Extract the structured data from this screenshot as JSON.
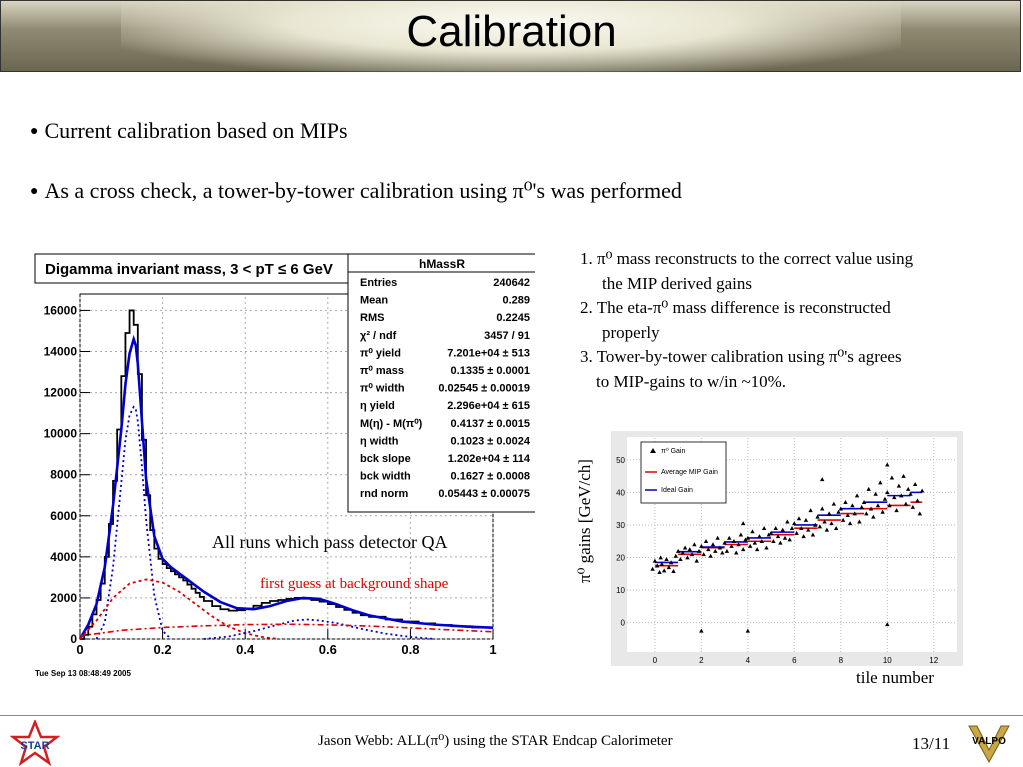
{
  "slide": {
    "title": "Calibration",
    "bullets": [
      "Current calibration based on MIPs",
      "As a cross check, a tower-by-tower calibration using π⁰'s was performed"
    ],
    "notes": [
      "1. π⁰ mass reconstructs to the correct value using",
      "the MIP derived gains",
      "2. The eta-π⁰ mass difference is reconstructed",
      "properly",
      "3. Tower-by-tower calibration using π⁰'s agrees",
      "to MIP-gains to w/in ~10%."
    ],
    "annotation_runs": "All runs which pass detector QA",
    "annotation_bg": "first guess at background shape",
    "footer": "Jason Webb: ALL(π⁰) using the STAR Endcap Calorimeter",
    "page": "13/11",
    "logo_left": "STAR",
    "logo_right": "VALPO",
    "colors": {
      "accent_red": "#e00000",
      "blue": "#0000cc"
    }
  },
  "chart_data": [
    {
      "type": "line",
      "title": "Digamma invariant mass, 3 < pT ≤ 6 GeV",
      "timestamp": "Tue Sep 13 08:48:49 2005",
      "xlim": [
        0,
        1
      ],
      "ylim": [
        0,
        16800
      ],
      "xticks": [
        "0",
        "0.2",
        "0.4",
        "0.6",
        "0.8",
        "1"
      ],
      "yticks": [
        "0",
        "2000",
        "4000",
        "6000",
        "8000",
        "10000",
        "12000",
        "14000",
        "16000"
      ],
      "stats_box": {
        "name": "hMassR",
        "rows": [
          [
            "Entries",
            "240642"
          ],
          [
            "Mean",
            "0.289"
          ],
          [
            "RMS",
            "0.2245"
          ],
          [
            "χ² / ndf",
            "3457 / 91"
          ],
          [
            "π⁰ yield",
            "7.201e+04 ± 513"
          ],
          [
            "π⁰ mass",
            "0.1335 ± 0.0001"
          ],
          [
            "π⁰ width",
            "0.02545 ± 0.00019"
          ],
          [
            "η yield",
            "2.296e+04 ± 615"
          ],
          [
            "M(η) - M(π⁰)",
            "0.4137 ± 0.0015"
          ],
          [
            "η width",
            "0.1023 ± 0.0024"
          ],
          [
            "bck slope",
            "1.202e+04 ± 114"
          ],
          [
            "bck width",
            "0.1627 ± 0.0008"
          ],
          [
            "rnd norm",
            "0.05443 ± 0.00075"
          ]
        ]
      },
      "histogram": {
        "x": [
          0.0,
          0.01,
          0.02,
          0.03,
          0.04,
          0.05,
          0.06,
          0.07,
          0.08,
          0.09,
          0.1,
          0.11,
          0.12,
          0.13,
          0.14,
          0.15,
          0.16,
          0.17,
          0.18,
          0.19,
          0.2,
          0.21,
          0.22,
          0.23,
          0.24,
          0.25,
          0.26,
          0.27,
          0.28,
          0.29,
          0.3,
          0.32,
          0.34,
          0.36,
          0.38,
          0.4,
          0.42,
          0.44,
          0.46,
          0.48,
          0.5,
          0.52,
          0.54,
          0.56,
          0.58,
          0.6,
          0.62,
          0.64,
          0.66,
          0.68,
          0.7,
          0.74,
          0.78,
          0.82,
          0.86,
          0.9,
          0.95,
          1.0
        ],
        "y": [
          0,
          200,
          600,
          1200,
          1900,
          2700,
          4000,
          5600,
          7700,
          10200,
          12800,
          14900,
          16000,
          15300,
          12900,
          9700,
          7000,
          5300,
          4400,
          3900,
          3650,
          3450,
          3300,
          3150,
          3000,
          2850,
          2650,
          2450,
          2250,
          2050,
          1850,
          1600,
          1450,
          1380,
          1400,
          1480,
          1620,
          1760,
          1850,
          1900,
          1960,
          2000,
          1960,
          1900,
          1820,
          1700,
          1560,
          1420,
          1280,
          1160,
          1080,
          950,
          850,
          760,
          680,
          620,
          560,
          500
        ]
      },
      "series": [
        {
          "name": "total fit",
          "color": "#0000cc",
          "x": [
            0.0,
            0.02,
            0.04,
            0.06,
            0.08,
            0.1,
            0.11,
            0.12,
            0.13,
            0.135,
            0.14,
            0.15,
            0.16,
            0.18,
            0.2,
            0.22,
            0.24,
            0.26,
            0.28,
            0.3,
            0.34,
            0.38,
            0.42,
            0.46,
            0.5,
            0.54,
            0.58,
            0.62,
            0.66,
            0.7,
            0.78,
            0.86,
            0.94,
            1.0
          ],
          "y": [
            0,
            700,
            1700,
            3500,
            6500,
            10200,
            12400,
            13900,
            14600,
            14300,
            13400,
            10600,
            7800,
            5000,
            3900,
            3500,
            3200,
            2900,
            2600,
            2300,
            1800,
            1500,
            1450,
            1600,
            1850,
            2000,
            1950,
            1700,
            1400,
            1150,
            850,
            700,
            600,
            550
          ]
        },
        {
          "name": "π⁰ peak",
          "color": "#0000cc",
          "x": [
            0.04,
            0.06,
            0.08,
            0.1,
            0.11,
            0.12,
            0.13,
            0.135,
            0.14,
            0.15,
            0.16,
            0.18,
            0.2,
            0.22
          ],
          "y": [
            0,
            800,
            3500,
            7600,
            9700,
            10900,
            11300,
            11200,
            10600,
            8400,
            5800,
            2100,
            400,
            0
          ]
        },
        {
          "name": "background",
          "color": "#e00000",
          "x": [
            0.0,
            0.04,
            0.08,
            0.12,
            0.16,
            0.2,
            0.24,
            0.28,
            0.32,
            0.36,
            0.4,
            0.44,
            0.48
          ],
          "y": [
            0,
            900,
            2000,
            2700,
            2900,
            2750,
            2300,
            1700,
            1100,
            600,
            280,
            100,
            0
          ]
        },
        {
          "name": "eta peak",
          "color": "#0000cc",
          "x": [
            0.3,
            0.36,
            0.42,
            0.48,
            0.52,
            0.55,
            0.58,
            0.62,
            0.68,
            0.74,
            0.8,
            0.86
          ],
          "y": [
            0,
            120,
            380,
            700,
            900,
            950,
            900,
            780,
            500,
            260,
            100,
            0
          ]
        },
        {
          "name": "rnd",
          "color": "#e00000",
          "x": [
            0.0,
            0.1,
            0.2,
            0.3,
            0.4,
            0.5,
            0.6,
            0.7,
            0.8,
            0.9,
            1.0
          ],
          "y": [
            150,
            420,
            560,
            640,
            700,
            720,
            690,
            630,
            540,
            440,
            350
          ]
        }
      ]
    },
    {
      "type": "scatter",
      "xlim": [
        -1.2,
        13
      ],
      "ylim": [
        -9,
        57
      ],
      "xticks": [
        "0",
        "2",
        "4",
        "6",
        "8",
        "10",
        "12"
      ],
      "yticks": [
        "0",
        "10",
        "20",
        "30",
        "40",
        "50"
      ],
      "xlabel": "tile number",
      "ylabel": "π⁰ gains [GeV/ch]",
      "legend": [
        "π⁰ Gain",
        "Average MIP Gain",
        "Ideal Gain"
      ],
      "segments": [
        {
          "x": [
            0,
            1
          ],
          "mip": 17.5,
          "ideal": 18.5
        },
        {
          "x": [
            1,
            2
          ],
          "mip": 21.0,
          "ideal": 21.8
        },
        {
          "x": [
            2,
            3
          ],
          "mip": 23.0,
          "ideal": 23.2
        },
        {
          "x": [
            3,
            4
          ],
          "mip": 24.0,
          "ideal": 24.8
        },
        {
          "x": [
            4,
            5
          ],
          "mip": 25.0,
          "ideal": 26.0
        },
        {
          "x": [
            5,
            6
          ],
          "mip": 27.0,
          "ideal": 27.8
        },
        {
          "x": [
            6,
            7
          ],
          "mip": 29.0,
          "ideal": 30.0
        },
        {
          "x": [
            7,
            8
          ],
          "mip": 31.5,
          "ideal": 33.0
        },
        {
          "x": [
            8,
            9
          ],
          "mip": 33.5,
          "ideal": 35.0
        },
        {
          "x": [
            9,
            10
          ],
          "mip": 35.0,
          "ideal": 37.0
        },
        {
          "x": [
            10,
            11
          ],
          "mip": 36.0,
          "ideal": 39.0
        },
        {
          "x": [
            11,
            11.5
          ],
          "mip": 37.0,
          "ideal": 40.0
        }
      ],
      "points": [
        [
          -0.1,
          16.5
        ],
        [
          0.0,
          19.0
        ],
        [
          0.1,
          17.5
        ],
        [
          0.2,
          15.5
        ],
        [
          0.25,
          20.0
        ],
        [
          0.3,
          18.0
        ],
        [
          0.4,
          16.0
        ],
        [
          0.5,
          19.5
        ],
        [
          0.6,
          17.0
        ],
        [
          0.7,
          18.5
        ],
        [
          0.8,
          15.8
        ],
        [
          0.9,
          20.5
        ],
        [
          1.0,
          22.0
        ],
        [
          1.1,
          19.5
        ],
        [
          1.2,
          21.5
        ],
        [
          1.3,
          23.0
        ],
        [
          1.4,
          20.0
        ],
        [
          1.5,
          22.5
        ],
        [
          1.6,
          21.0
        ],
        [
          1.7,
          24.0
        ],
        [
          1.8,
          19.0
        ],
        [
          1.9,
          22.0
        ],
        [
          2.0,
          23.5
        ],
        [
          2.1,
          21.0
        ],
        [
          2.2,
          25.0
        ],
        [
          2.3,
          22.5
        ],
        [
          2.4,
          20.5
        ],
        [
          2.5,
          24.0
        ],
        [
          2.6,
          22.0
        ],
        [
          2.7,
          26.0
        ],
        [
          2.8,
          23.0
        ],
        [
          2.9,
          21.5
        ],
        [
          3.0,
          24.5
        ],
        [
          3.1,
          22.0
        ],
        [
          3.2,
          26.0
        ],
        [
          3.3,
          23.5
        ],
        [
          3.4,
          25.0
        ],
        [
          3.5,
          21.5
        ],
        [
          3.6,
          24.0
        ],
        [
          3.7,
          27.0
        ],
        [
          3.8,
          22.5
        ],
        [
          3.9,
          25.5
        ],
        [
          4.0,
          26.0
        ],
        [
          4.1,
          23.5
        ],
        [
          4.2,
          28.0
        ],
        [
          4.3,
          24.5
        ],
        [
          4.4,
          22.5
        ],
        [
          4.5,
          26.5
        ],
        [
          4.6,
          25.0
        ],
        [
          4.7,
          29.0
        ],
        [
          4.8,
          23.0
        ],
        [
          4.9,
          27.0
        ],
        [
          5.0,
          27.5
        ],
        [
          5.1,
          25.0
        ],
        [
          5.2,
          29.0
        ],
        [
          5.3,
          26.5
        ],
        [
          5.4,
          24.5
        ],
        [
          5.5,
          28.5
        ],
        [
          5.6,
          26.0
        ],
        [
          5.7,
          31.0
        ],
        [
          5.8,
          25.5
        ],
        [
          5.9,
          29.0
        ],
        [
          6.0,
          30.5
        ],
        [
          6.1,
          27.5
        ],
        [
          6.2,
          32.0
        ],
        [
          6.3,
          29.0
        ],
        [
          6.4,
          26.5
        ],
        [
          6.5,
          31.5
        ],
        [
          6.6,
          28.5
        ],
        [
          6.7,
          34.5
        ],
        [
          6.8,
          27.0
        ],
        [
          6.9,
          30.0
        ],
        [
          7.0,
          32.5
        ],
        [
          7.1,
          29.5
        ],
        [
          7.2,
          35.0
        ],
        [
          7.3,
          31.0
        ],
        [
          7.4,
          28.5
        ],
        [
          7.5,
          33.5
        ],
        [
          7.6,
          30.5
        ],
        [
          7.7,
          36.5
        ],
        [
          7.8,
          29.0
        ],
        [
          7.9,
          34.0
        ],
        [
          8.0,
          35.0
        ],
        [
          8.1,
          31.5
        ],
        [
          8.2,
          37.0
        ],
        [
          8.3,
          33.0
        ],
        [
          8.4,
          30.5
        ],
        [
          8.5,
          36.0
        ],
        [
          8.6,
          33.5
        ],
        [
          8.7,
          39.0
        ],
        [
          8.8,
          31.0
        ],
        [
          8.9,
          35.5
        ],
        [
          9.0,
          37.0
        ],
        [
          9.1,
          33.5
        ],
        [
          9.2,
          41.0
        ],
        [
          9.3,
          35.0
        ],
        [
          9.4,
          32.5
        ],
        [
          9.5,
          39.5
        ],
        [
          9.6,
          36.0
        ],
        [
          9.7,
          43.0
        ],
        [
          9.8,
          34.0
        ],
        [
          9.9,
          38.0
        ],
        [
          10.0,
          40.0
        ],
        [
          10.1,
          36.0
        ],
        [
          10.2,
          44.5
        ],
        [
          10.3,
          38.5
        ],
        [
          10.4,
          34.5
        ],
        [
          10.5,
          42.0
        ],
        [
          10.6,
          39.0
        ],
        [
          10.7,
          45.0
        ],
        [
          10.8,
          36.5
        ],
        [
          10.9,
          41.0
        ],
        [
          11.0,
          39.5
        ],
        [
          11.1,
          35.5
        ],
        [
          11.2,
          42.5
        ],
        [
          11.3,
          37.5
        ],
        [
          11.4,
          33.5
        ],
        [
          11.5,
          40.5
        ],
        [
          7.2,
          44.0
        ],
        [
          10.0,
          48.5
        ],
        [
          2.0,
          -2.5
        ],
        [
          4.0,
          -2.5
        ],
        [
          10.0,
          -0.5
        ],
        [
          3.8,
          30.5
        ]
      ]
    }
  ]
}
